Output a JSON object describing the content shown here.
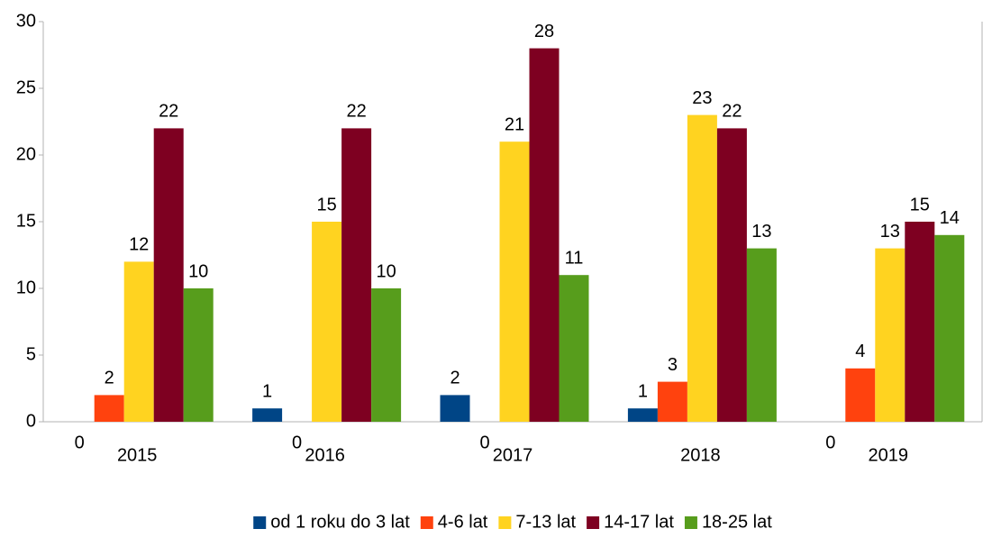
{
  "chart_data": {
    "type": "bar",
    "categories": [
      "2015",
      "2016",
      "2017",
      "2018",
      "2019"
    ],
    "series": [
      {
        "name": "od 1 roku do 3 lat",
        "color": "#004586",
        "values": [
          0,
          1,
          2,
          1,
          0
        ]
      },
      {
        "name": "4-6 lat",
        "color": "#ff420e",
        "values": [
          2,
          0,
          0,
          3,
          4
        ]
      },
      {
        "name": "7-13 lat",
        "color": "#ffd320",
        "values": [
          12,
          15,
          21,
          23,
          13
        ]
      },
      {
        "name": "14-17 lat",
        "color": "#7e0021",
        "values": [
          22,
          22,
          28,
          22,
          15
        ]
      },
      {
        "name": "18-25 lat",
        "color": "#579d1c",
        "values": [
          10,
          10,
          11,
          13,
          14
        ]
      }
    ],
    "ylim": [
      0,
      30
    ],
    "yticks": [
      0,
      5,
      10,
      15,
      20,
      25,
      30
    ],
    "grid": false,
    "legend": "bottom"
  }
}
